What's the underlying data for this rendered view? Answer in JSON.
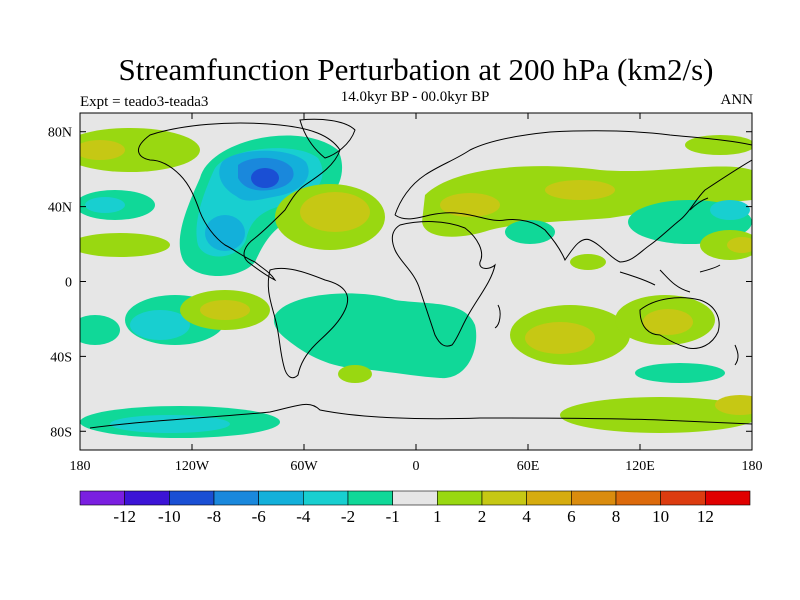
{
  "title": "Streamfunction Perturbation at 200 hPa (km2/s)",
  "subtitle": "14.0kyr BP - 00.0kyr BP",
  "left_label": "Expt = teado3-teada3",
  "right_label": "ANN",
  "axes": {
    "x_ticks": [
      {
        "value": -180,
        "label": "180"
      },
      {
        "value": -120,
        "label": "120W"
      },
      {
        "value": -60,
        "label": "60W"
      },
      {
        "value": 0,
        "label": "0"
      },
      {
        "value": 60,
        "label": "60E"
      },
      {
        "value": 120,
        "label": "120E"
      },
      {
        "value": 180,
        "label": "180"
      }
    ],
    "y_ticks": [
      {
        "value": 80,
        "label": "80N"
      },
      {
        "value": 40,
        "label": "40N"
      },
      {
        "value": 0,
        "label": "0"
      },
      {
        "value": -40,
        "label": "40S"
      },
      {
        "value": -80,
        "label": "80S"
      }
    ]
  },
  "colorbar": {
    "colors": [
      "#7a1fe0",
      "#3c14d6",
      "#1a4fd4",
      "#1a88dc",
      "#13b0da",
      "#18cfd0",
      "#10d898",
      "#e6e6e6",
      "#99d811",
      "#c6c814",
      "#d6ac0f",
      "#da8c0e",
      "#dc6a0b",
      "#dc3c10",
      "#e00000"
    ],
    "labels": [
      "-12",
      "-10",
      "-8",
      "-6",
      "-4",
      "-2",
      "-1",
      "1",
      "2",
      "4",
      "6",
      "8",
      "10",
      "12"
    ]
  },
  "chart_data": {
    "type": "heatmap",
    "title": "Streamfunction Perturbation at 200 hPa (km2/s)",
    "subtitle": "14.0kyr BP - 00.0kyr BP",
    "xlabel": "",
    "ylabel": "",
    "xlim": [
      -180,
      180
    ],
    "ylim": [
      -90,
      90
    ],
    "levels": [
      -12,
      -10,
      -8,
      -6,
      -4,
      -2,
      -1,
      1,
      2,
      4,
      6,
      8,
      10,
      12
    ],
    "anomalies": [
      {
        "lon": -75,
        "lat": 55,
        "value": -6
      },
      {
        "lon": -100,
        "lat": 60,
        "value": -5
      },
      {
        "lon": -95,
        "lat": 15,
        "value": -3
      },
      {
        "lon": -120,
        "lat": -28,
        "value": 2
      },
      {
        "lon": -150,
        "lat": -28,
        "value": -3
      },
      {
        "lon": -30,
        "lat": -22,
        "value": -2
      },
      {
        "lon": 30,
        "lat": -25,
        "value": -2
      },
      {
        "lon": -35,
        "lat": 40,
        "value": 3
      },
      {
        "lon": 60,
        "lat": 50,
        "value": 2
      },
      {
        "lon": 80,
        "lat": -32,
        "value": 3
      },
      {
        "lon": 135,
        "lat": -25,
        "value": 3
      },
      {
        "lon": 140,
        "lat": 35,
        "value": -2
      },
      {
        "lon": -150,
        "lat": -75,
        "value": -2
      },
      {
        "lon": 130,
        "lat": -70,
        "value": 2
      }
    ]
  }
}
